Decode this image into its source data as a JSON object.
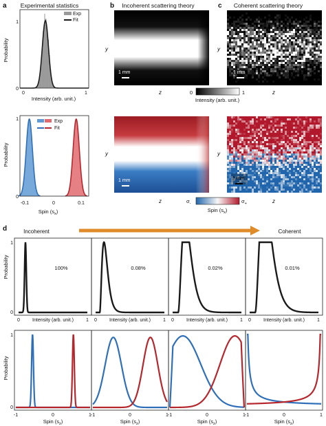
{
  "panel_letters": {
    "a": "a",
    "b": "b",
    "c": "c",
    "d": "d"
  },
  "titles": {
    "a": "Experimental statistics",
    "b": "Incoherent scattering theory",
    "c": "Coherent scattering theory"
  },
  "labels": {
    "probability": "Probability",
    "intensity": "Intensity (arb. unit.)",
    "spin_x": "Spin (s",
    "spin_x_sub": "x",
    "spin_x_close": ")",
    "spin_z": "Spin (s",
    "spin_z_sub": "z",
    "spin_z_close": ")",
    "y": "y",
    "z": "z",
    "scale": "1 mm",
    "incoherent": "Incoherent",
    "coherent": "Coherent",
    "sigma_minus": "σ",
    "sigma_minus_sub": "-",
    "sigma_plus": "σ",
    "sigma_plus_sub": "+"
  },
  "colorbars": {
    "intensity": {
      "min_label": "0",
      "max_label": "1",
      "label": "Intensity (arb. unit.)",
      "colors": [
        "#000000",
        "#ffffff"
      ]
    },
    "spin": {
      "label": "Spin (s",
      "label_sub": "x",
      "label_close": ")",
      "colors": [
        "#2166ac",
        "#f7f7f7",
        "#b2182b"
      ]
    }
  },
  "arrow_color": "#e08b2a",
  "colors": {
    "blue": "#2f6fba",
    "red": "#b5272d",
    "black": "#1a1a1a",
    "gray": "#9a9a9a",
    "blue_fill": "#5f9ad3",
    "red_fill": "#e06a70"
  },
  "ticks": {
    "a_top_x": [
      "0",
      "1"
    ],
    "a_top_y": [
      "0",
      "1"
    ],
    "a_bot_x": [
      "-0.1",
      "0",
      "0.1"
    ],
    "a_bot_y": [
      "0",
      "1"
    ],
    "d_top_x": [
      "0",
      "1"
    ],
    "d_top_y": [
      "0",
      "1"
    ],
    "d_bot_x": [
      "-1",
      "0",
      "1"
    ],
    "d_bot_y": [
      "0",
      "1"
    ]
  },
  "chart_data": [
    {
      "panel": "a-top",
      "type": "bar",
      "title": "Experimental statistics",
      "xlabel": "Intensity (arb. unit.)",
      "ylabel": "Probability",
      "series": [
        {
          "name": "Exp",
          "kind": "histogram",
          "color": "#9a9a9a"
        },
        {
          "name": "Fit",
          "kind": "line",
          "color": "#1a1a1a",
          "peak_x": 0.37,
          "width": 0.045
        }
      ],
      "xlim": [
        0,
        1
      ],
      "ylim": [
        0,
        1
      ]
    },
    {
      "panel": "a-bottom",
      "type": "bar",
      "xlabel": "Spin (sx)",
      "ylabel": "Probability",
      "series": [
        {
          "name": "Exp",
          "kind": "histogram",
          "colors": [
            "#5f9ad3",
            "#e06a70"
          ]
        },
        {
          "name": "Fit",
          "kind": "line",
          "colors": [
            "#2f6fba",
            "#b5272d"
          ],
          "peaks_x": [
            -0.08,
            0.07
          ],
          "width": 0.01
        }
      ],
      "xlim": [
        -0.11,
        0.11
      ],
      "ylim": [
        0,
        1
      ]
    },
    {
      "panel": "b-top",
      "type": "heatmap",
      "title": "Incoherent scattering theory",
      "xlabel": "z",
      "ylabel": "y",
      "colormap": "gray",
      "range": [
        0,
        1
      ]
    },
    {
      "panel": "c-top",
      "type": "heatmap",
      "title": "Coherent scattering theory",
      "xlabel": "z",
      "ylabel": "y",
      "colormap": "gray",
      "range": [
        0,
        1
      ]
    },
    {
      "panel": "b-bottom",
      "type": "heatmap",
      "xlabel": "z",
      "ylabel": "y",
      "colormap": "blue-white-red"
    },
    {
      "panel": "c-bottom",
      "type": "heatmap",
      "xlabel": "z",
      "ylabel": "y",
      "colormap": "blue-white-red"
    },
    {
      "panel": "d-top",
      "type": "line",
      "xlabel": "Intensity (arb. unit.)",
      "ylabel": "Probability",
      "xlim": [
        0,
        1
      ],
      "ylim": [
        0,
        1
      ],
      "subplots": [
        {
          "annotation": "100%",
          "mode": 0.1
        },
        {
          "annotation": "0.08%",
          "mode": 0.12
        },
        {
          "annotation": "0.02%",
          "mode": 0.14
        },
        {
          "annotation": "0.01%",
          "mode": 0.14
        }
      ]
    },
    {
      "panel": "d-bottom",
      "type": "line",
      "xlabel": "Spin (sz)",
      "ylabel": "Probability",
      "xlim": [
        -1,
        1
      ],
      "ylim": [
        0,
        1
      ],
      "subplots": [
        {
          "peaks": [
            -0.55,
            0.55
          ],
          "width": 0.025
        },
        {
          "peaks": [
            -0.45,
            0.55
          ],
          "width": 0.22
        },
        {
          "peaks": [
            -0.65,
            0.75
          ],
          "width": 0.45
        },
        {
          "peaks": [
            -1,
            1
          ],
          "width": "divergent"
        }
      ]
    }
  ]
}
